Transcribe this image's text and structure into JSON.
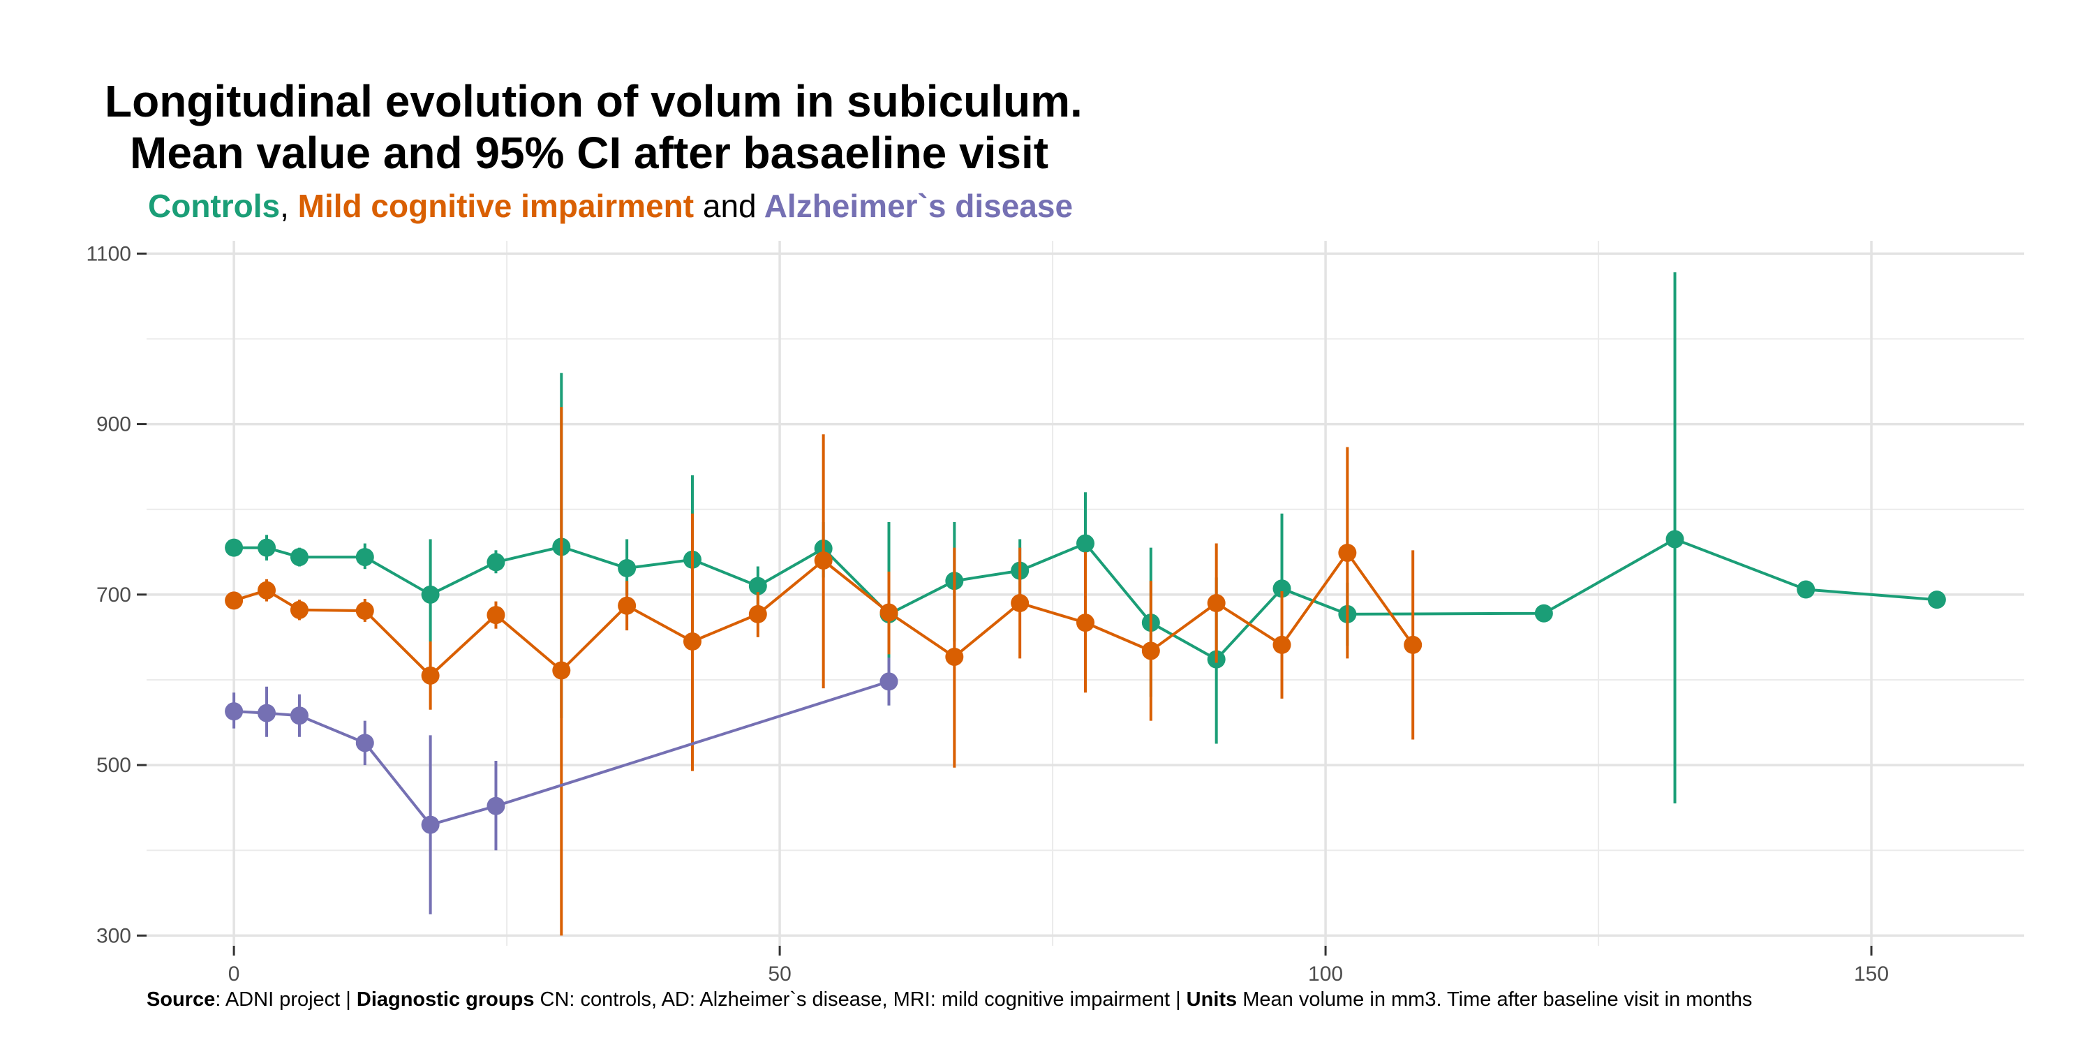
{
  "chart_data": {
    "type": "line",
    "title": {
      "line1": "Longitudinal evolution of volum in subiculum.",
      "line2": "Mean value and 95% CI after basaeline visit"
    },
    "subtitle": {
      "group1": "Controls",
      "sep1": ",",
      "group2": "Mild cognitive impairment",
      "sep2": "and",
      "group3": "Alzheimer`s disease"
    },
    "xlabel": "",
    "ylabel": "",
    "xlim": [
      -8,
      164
    ],
    "ylim": [
      288,
      1115
    ],
    "xticks": [
      0,
      50,
      100,
      150
    ],
    "yticks": [
      300,
      500,
      700,
      900,
      1100
    ],
    "grid": true,
    "legend": "none",
    "series": [
      {
        "name": "Controls",
        "color": "#1b9e77",
        "x": [
          0,
          3,
          6,
          12,
          18,
          24,
          30,
          36,
          42,
          48,
          54,
          60,
          66,
          72,
          78,
          84,
          90,
          96,
          102,
          120,
          132,
          144,
          156
        ],
        "y": [
          755,
          755,
          744,
          744,
          700,
          738,
          756,
          731,
          741,
          710,
          754,
          677,
          716,
          728,
          760,
          667,
          624,
          707,
          677,
          678,
          765,
          706,
          694
        ],
        "lower": [
          748,
          740,
          733,
          730,
          645,
          725,
          555,
          700,
          645,
          687,
          720,
          570,
          645,
          690,
          700,
          580,
          525,
          620,
          640,
          675,
          455,
          703,
          691
        ],
        "upper": [
          760,
          770,
          755,
          760,
          765,
          752,
          960,
          765,
          840,
          733,
          785,
          785,
          785,
          765,
          820,
          755,
          720,
          795,
          714,
          681,
          1078,
          709,
          697
        ]
      },
      {
        "name": "Mild cognitive impairment",
        "color": "#d95f02",
        "x": [
          0,
          3,
          6,
          12,
          18,
          24,
          30,
          36,
          42,
          48,
          54,
          60,
          66,
          72,
          78,
          84,
          90,
          96,
          102,
          108
        ],
        "y": [
          693,
          705,
          682,
          681,
          605,
          676,
          611,
          687,
          645,
          677,
          740,
          679,
          627,
          690,
          667,
          634,
          690,
          641,
          749,
          641
        ],
        "lower": [
          685,
          692,
          670,
          668,
          565,
          660,
          300,
          658,
          493,
          650,
          590,
          630,
          497,
          625,
          585,
          552,
          620,
          578,
          625,
          530
        ],
        "upper": [
          701,
          718,
          694,
          695,
          645,
          692,
          920,
          716,
          795,
          703,
          888,
          727,
          755,
          755,
          750,
          716,
          760,
          704,
          873,
          752
        ]
      },
      {
        "name": "Alzheimer`s disease",
        "color": "#7570b3",
        "x": [
          0,
          3,
          6,
          12,
          18,
          24,
          60
        ],
        "y": [
          563,
          561,
          558,
          526,
          430,
          452,
          598
        ],
        "lower": [
          543,
          533,
          533,
          500,
          325,
          400,
          570
        ],
        "upper": [
          585,
          592,
          583,
          552,
          535,
          505,
          626
        ]
      }
    ]
  },
  "caption": {
    "source_label": "Source",
    "source_text": ": ADNI project | ",
    "groups_label": "Diagnostic groups",
    "groups_text": " CN: controls, AD: Alzheimer`s disease, MRI: mild cognitive impairment | ",
    "units_label": "Units",
    "units_text": " Mean volume in mm3. Time after baseline visit in months"
  }
}
